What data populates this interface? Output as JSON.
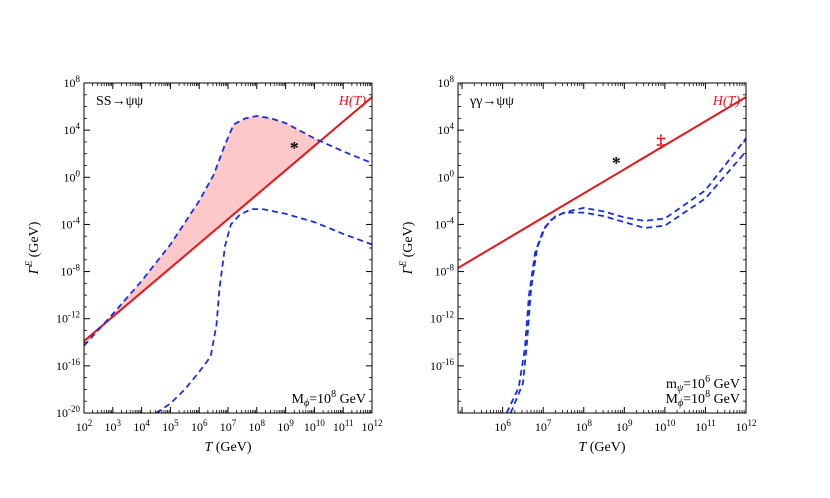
{
  "chart_data": [
    {
      "type": "line",
      "panel_label": "SS→ψψ",
      "annotation": "M_ϕ=10^8 GeV",
      "annotation_lines": [
        {
          "main": "M",
          "sub": "ϕ",
          "mid": "=10",
          "sup": "8",
          "tail": " GeV"
        }
      ],
      "xlabel": "T (GeV)",
      "ylabel": "Γ^E (GeV)",
      "x_scale": "log",
      "y_scale": "log",
      "xlim_log10": [
        2,
        12
      ],
      "ylim_log10": [
        -20,
        8
      ],
      "x_ticks_log10": [
        2,
        3,
        4,
        5,
        6,
        7,
        8,
        9,
        10,
        11,
        12
      ],
      "y_ticks_log10": [
        -20,
        -16,
        -12,
        -8,
        -4,
        0,
        4,
        8
      ],
      "colors": {
        "hubble": "#e8141b",
        "rate": "#1a2fdc",
        "shade": "#ffc8c8",
        "marker": "#000000"
      },
      "series": [
        {
          "name": "H(T)",
          "style": "solid",
          "log10_points": [
            [
              2,
              -13.9
            ],
            [
              12,
              6.8
            ]
          ]
        },
        {
          "name": "",
          "style": "dashed",
          "log10_points": [
            [
              2,
              -14.3
            ],
            [
              3,
              -11.6
            ],
            [
              4,
              -8.8
            ],
            [
              5,
              -5.7
            ],
            [
              6,
              -2.0
            ],
            [
              6.5,
              0.2
            ],
            [
              6.9,
              2.8
            ],
            [
              7.2,
              4.5
            ],
            [
              7.6,
              5.0
            ],
            [
              8,
              5.2
            ],
            [
              8.5,
              5.0
            ],
            [
              9,
              4.6
            ],
            [
              10,
              3.3
            ],
            [
              11,
              2.2
            ],
            [
              12,
              1.2
            ]
          ]
        },
        {
          "name": "",
          "style": "dashed",
          "log10_points": [
            [
              4.5,
              -20
            ],
            [
              5,
              -19.2
            ],
            [
              5.5,
              -18.0
            ],
            [
              6,
              -16.5
            ],
            [
              6.4,
              -15.2
            ],
            [
              6.6,
              -12.5
            ],
            [
              6.7,
              -9.5
            ],
            [
              6.9,
              -5.8
            ],
            [
              7.1,
              -4.0
            ],
            [
              7.4,
              -3.2
            ],
            [
              7.8,
              -2.7
            ],
            [
              8.2,
              -2.7
            ],
            [
              9,
              -3.1
            ],
            [
              10,
              -3.8
            ],
            [
              11,
              -4.8
            ],
            [
              12,
              -5.7
            ]
          ]
        }
      ],
      "shaded_region": {
        "between": "upper dashed and H(T)",
        "x_log10": [
          2.1,
          10.1
        ]
      },
      "markers": [
        {
          "symbol": "*",
          "log10_point": [
            9.3,
            2.5
          ]
        }
      ]
    },
    {
      "type": "line",
      "panel_label": "γγ→ψψ",
      "annotation": "m_ψ=10^6 GeV, M_ϕ=10^8 GeV",
      "annotation_lines": [
        {
          "main": "m",
          "sub": "ψ",
          "mid": "=10",
          "sup": "6",
          "tail": " GeV"
        },
        {
          "main": "M",
          "sub": "ϕ",
          "mid": "=10",
          "sup": "8",
          "tail": " GeV"
        }
      ],
      "xlabel": "T (GeV)",
      "ylabel": "Γ^E (GeV)",
      "x_scale": "log",
      "y_scale": "log",
      "xlim_log10": [
        4.9,
        12
      ],
      "ylim_log10": [
        -20,
        8
      ],
      "x_ticks_log10": [
        6,
        7,
        8,
        9,
        10,
        11,
        12
      ],
      "y_ticks_log10": [
        -16,
        -12,
        -8,
        -4,
        0,
        4,
        8
      ],
      "colors": {
        "hubble": "#e8141b",
        "rate": "#1a2fdc",
        "marker": "#000000",
        "end_marker": "#e8141b"
      },
      "series": [
        {
          "name": "H(T)",
          "style": "solid",
          "log10_points": [
            [
              4.9,
              -7.7
            ],
            [
              12,
              6.8
            ]
          ]
        },
        {
          "name": "",
          "style": "dashed",
          "log10_points": [
            [
              6.2,
              -20
            ],
            [
              6.5,
              -17.5
            ],
            [
              6.6,
              -14.0
            ],
            [
              6.7,
              -9.5
            ],
            [
              6.85,
              -6.0
            ],
            [
              7.05,
              -4.2
            ],
            [
              7.3,
              -3.3
            ],
            [
              7.6,
              -2.9
            ],
            [
              8,
              -2.6
            ],
            [
              8.5,
              -2.9
            ],
            [
              9,
              -3.4
            ],
            [
              9.5,
              -3.7
            ],
            [
              10,
              -3.5
            ],
            [
              11,
              -1.1
            ],
            [
              12,
              3.3
            ]
          ]
        },
        {
          "name": "",
          "style": "dashed",
          "log10_points": [
            [
              6.1,
              -20
            ],
            [
              6.4,
              -17.8
            ],
            [
              6.55,
              -14.5
            ],
            [
              6.65,
              -10.0
            ],
            [
              6.8,
              -6.4
            ],
            [
              7.0,
              -4.5
            ],
            [
              7.2,
              -3.6
            ],
            [
              7.5,
              -3.0
            ],
            [
              8,
              -3.0
            ],
            [
              8.5,
              -3.3
            ],
            [
              9,
              -3.8
            ],
            [
              9.5,
              -4.3
            ],
            [
              10,
              -4.1
            ],
            [
              11,
              -1.8
            ],
            [
              12,
              2.2
            ]
          ]
        }
      ],
      "markers": [
        {
          "symbol": "*",
          "log10_point": [
            8.8,
            1.2
          ]
        },
        {
          "symbol": "‡",
          "log10_point": [
            9.9,
            3.1
          ]
        }
      ]
    }
  ]
}
